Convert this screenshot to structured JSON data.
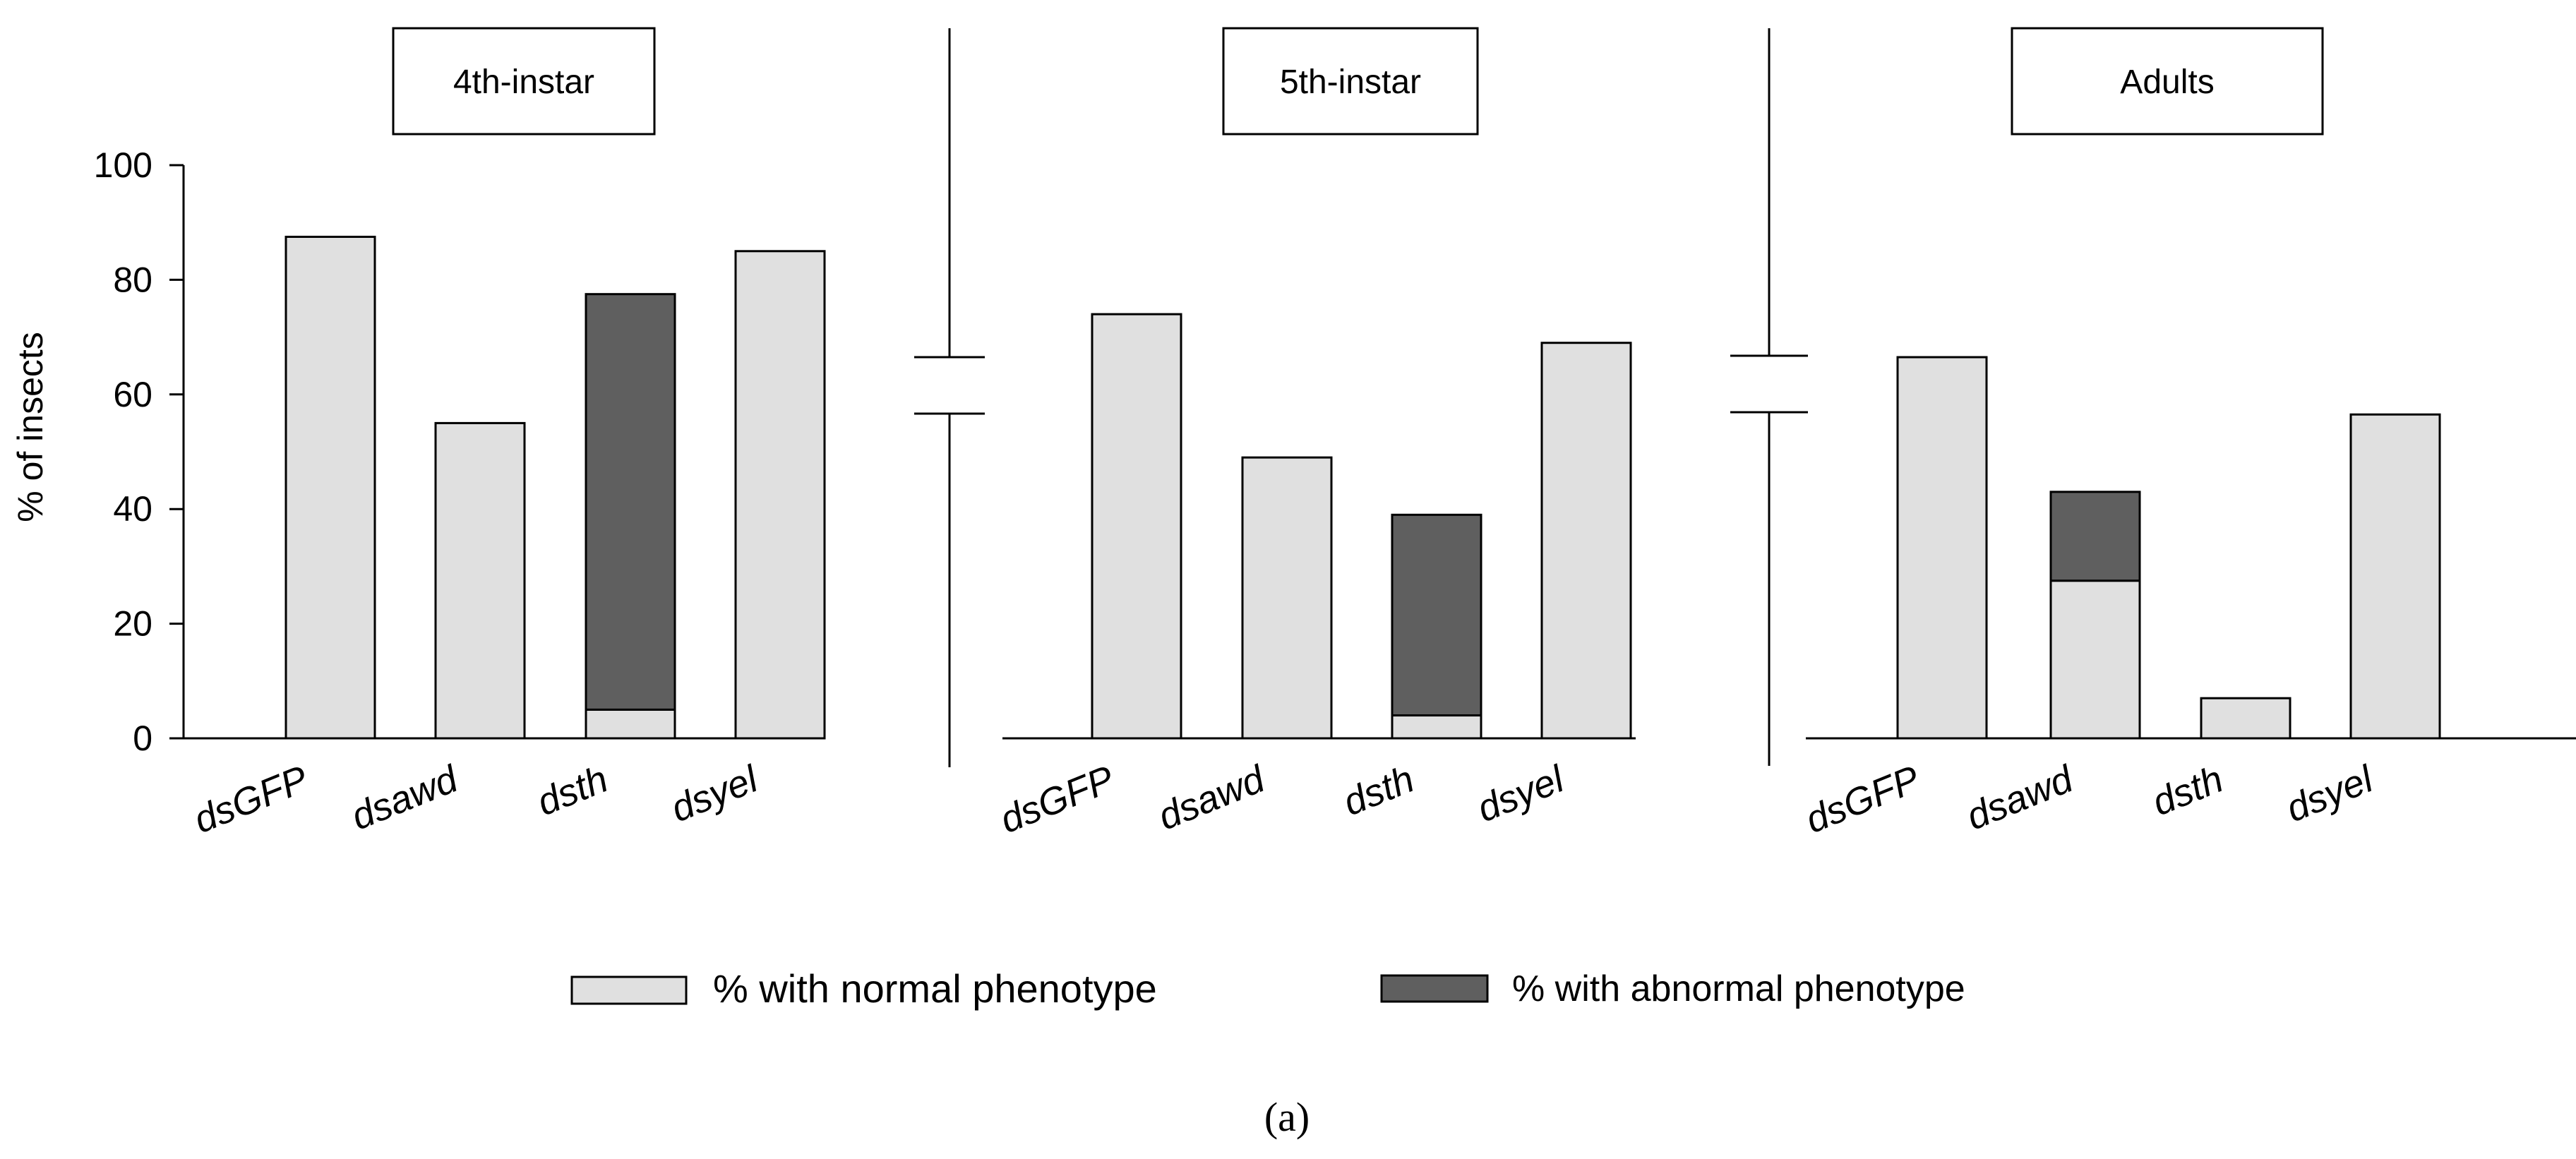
{
  "figure_label": "(a)",
  "legend": {
    "normal": "% with normal phenotype",
    "abnormal": "% with abnormal phenotype"
  },
  "colors": {
    "normal": "#e0e0e0",
    "abnormal": "#5f5f5f",
    "axis": "#000000",
    "background": "#ffffff"
  },
  "chart_data": {
    "type": "bar",
    "stacked": true,
    "ylabel": "% of insects",
    "ylim": [
      0,
      100
    ],
    "yticks": [
      0,
      20,
      40,
      60,
      80,
      100
    ],
    "categories": [
      "dsGFP",
      "dsawd",
      "dsth",
      "dsyel"
    ],
    "panels": [
      {
        "title": "4th-instar",
        "series": [
          {
            "name": "% with normal phenotype",
            "values": [
              87.5,
              55,
              5,
              85
            ]
          },
          {
            "name": "% with abnormal phenotype",
            "values": [
              0,
              0,
              72.5,
              0
            ]
          }
        ]
      },
      {
        "title": "5th-instar",
        "series": [
          {
            "name": "% with normal phenotype",
            "values": [
              74,
              49,
              4,
              69
            ]
          },
          {
            "name": "% with abnormal phenotype",
            "values": [
              0,
              0,
              35,
              0
            ]
          }
        ]
      },
      {
        "title": "Adults",
        "series": [
          {
            "name": "% with normal phenotype",
            "values": [
              66.5,
              27.5,
              7,
              56.5
            ]
          },
          {
            "name": "% with abnormal phenotype",
            "values": [
              0,
              15.5,
              0,
              0
            ]
          }
        ]
      }
    ]
  }
}
